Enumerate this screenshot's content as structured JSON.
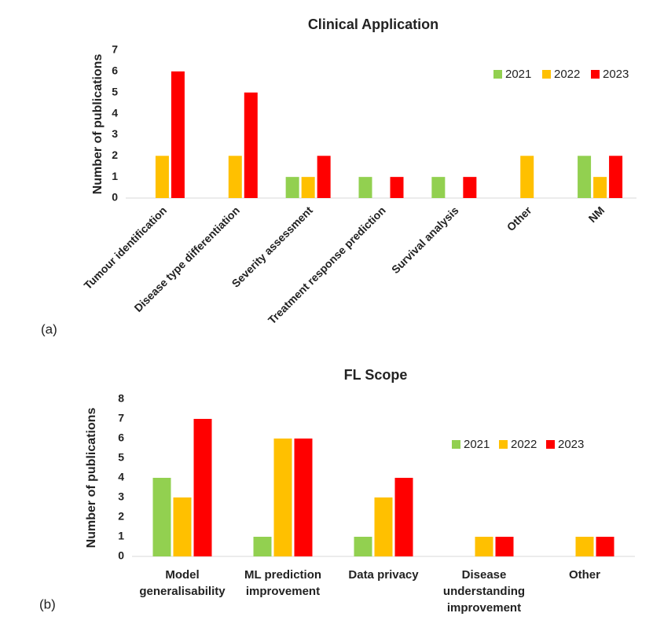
{
  "chart_data": [
    {
      "type": "bar",
      "title": "Clinical Application",
      "panel_label": "(a)",
      "y_label": "Number of publications",
      "categories": [
        [
          "Tumour identification"
        ],
        [
          "Disease type differentiation"
        ],
        [
          "Severity assessment"
        ],
        [
          "Treatment response prediction"
        ],
        [
          "Survival analysis"
        ],
        [
          "Other"
        ],
        [
          "NM"
        ]
      ],
      "series": [
        {
          "name": "2021",
          "color": "#92d050",
          "values": [
            0,
            0,
            1,
            1,
            1,
            0,
            2
          ]
        },
        {
          "name": "2022",
          "color": "#ffc000",
          "values": [
            2,
            2,
            1,
            0,
            0,
            2,
            1
          ]
        },
        {
          "name": "2023",
          "color": "#ff0000",
          "values": [
            6,
            5,
            2,
            1,
            1,
            0,
            2
          ]
        }
      ],
      "ylim": [
        0,
        7
      ],
      "yticks": [
        0,
        1,
        2,
        3,
        4,
        5,
        6,
        7
      ],
      "legend": "top-right",
      "rotated_labels": true
    },
    {
      "type": "bar",
      "title": "FL Scope",
      "panel_label": "(b)",
      "y_label": "Number of publications",
      "categories": [
        [
          "Model",
          "generalisability"
        ],
        [
          "ML prediction",
          "improvement"
        ],
        [
          "Data privacy"
        ],
        [
          "Disease",
          "understanding",
          "improvement"
        ],
        [
          "Other"
        ]
      ],
      "series": [
        {
          "name": "2021",
          "color": "#92d050",
          "values": [
            4,
            1,
            1,
            0,
            0
          ]
        },
        {
          "name": "2022",
          "color": "#ffc000",
          "values": [
            3,
            6,
            3,
            1,
            1
          ]
        },
        {
          "name": "2023",
          "color": "#ff0000",
          "values": [
            7,
            6,
            4,
            1,
            1
          ]
        }
      ],
      "ylim": [
        0,
        8
      ],
      "yticks": [
        0,
        1,
        2,
        3,
        4,
        5,
        6,
        7,
        8
      ],
      "legend": "top-right",
      "rotated_labels": false
    }
  ]
}
